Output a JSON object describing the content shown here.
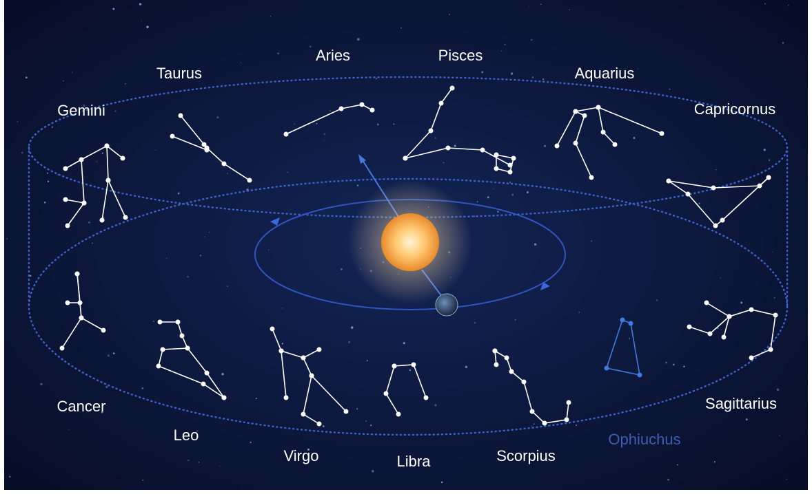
{
  "labels": {
    "aries": "Aries",
    "pisces": "Pisces",
    "taurus": "Taurus",
    "aquarius": "Aquarius",
    "gemini": "Gemini",
    "capricornus": "Capricornus",
    "cancer": "Cancer",
    "leo": "Leo",
    "virgo": "Virgo",
    "libra": "Libra",
    "scorpius": "Scorpius",
    "ophiuchus": "Ophiuchus",
    "sagittarius": "Sagittarius"
  }
}
